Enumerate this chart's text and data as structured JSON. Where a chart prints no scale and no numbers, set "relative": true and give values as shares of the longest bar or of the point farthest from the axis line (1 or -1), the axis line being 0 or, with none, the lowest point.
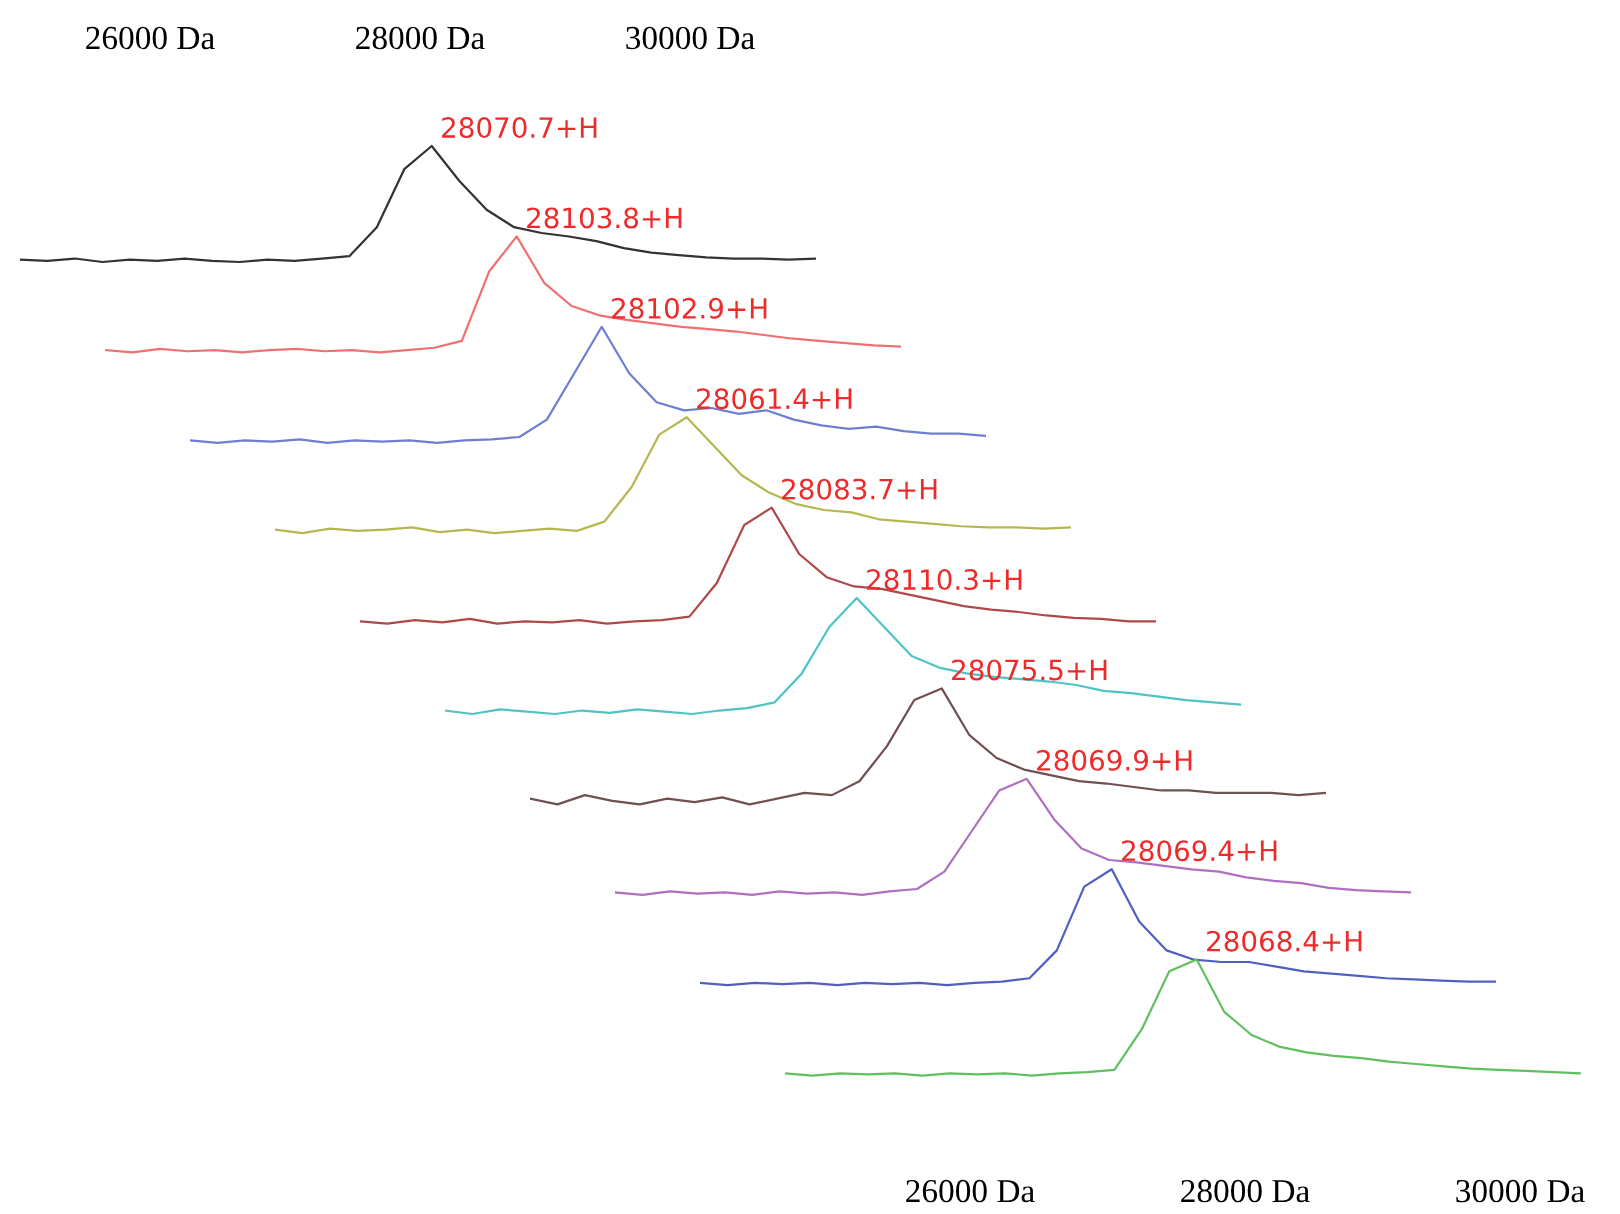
{
  "chart_data": [
    {
      "type": "line",
      "relative": true,
      "categories": [
        null,
        null,
        null,
        null,
        null,
        null,
        null,
        null,
        null,
        null,
        null,
        null,
        null,
        null,
        null,
        null,
        null,
        null,
        null,
        null,
        null,
        null,
        null,
        null,
        null,
        null,
        null,
        null,
        null,
        null
      ],
      "x2lim": [
        26000,
        30000
      ],
      "x2ticks": [
        {
          "value": 26000,
          "label": "26000 Da"
        },
        {
          "value": 28000,
          "label": "28000 Da"
        },
        {
          "value": 30000,
          "label": "30000 Da"
        }
      ],
      "tick_labels": "x2",
      "series": [
        {
          "color": "#333333",
          "values": [
            0.02,
            0.01,
            0.03,
            0.0,
            0.02,
            0.01,
            0.03,
            0.01,
            0.0,
            0.02,
            0.01,
            0.03,
            0.05,
            0.3,
            0.8,
            1.0,
            0.7,
            0.45,
            0.3,
            0.25,
            0.22,
            0.18,
            0.12,
            0.08,
            0.06,
            0.04,
            0.03,
            0.03,
            0.02,
            0.03
          ]
        }
      ],
      "annotations": [
        "28070.7+H"
      ]
    },
    {
      "type": "line",
      "relative": true,
      "categories": [
        null,
        null,
        null,
        null,
        null,
        null,
        null,
        null,
        null,
        null,
        null,
        null,
        null,
        null,
        null,
        null,
        null,
        null,
        null,
        null,
        null,
        null,
        null,
        null,
        null,
        null,
        null,
        null,
        null,
        null
      ],
      "tick_labels": false,
      "series": [
        {
          "color": "#f07070",
          "values": [
            0.02,
            0.0,
            0.03,
            0.01,
            0.02,
            0.0,
            0.02,
            0.03,
            0.01,
            0.02,
            0.0,
            0.02,
            0.04,
            0.1,
            0.7,
            1.0,
            0.6,
            0.4,
            0.32,
            0.28,
            0.25,
            0.22,
            0.2,
            0.18,
            0.15,
            0.12,
            0.1,
            0.08,
            0.06,
            0.05
          ]
        }
      ],
      "annotations": [
        "28103.8+H"
      ]
    },
    {
      "type": "line",
      "relative": true,
      "categories": [
        null,
        null,
        null,
        null,
        null,
        null,
        null,
        null,
        null,
        null,
        null,
        null,
        null,
        null,
        null,
        null,
        null,
        null,
        null,
        null,
        null,
        null,
        null,
        null,
        null,
        null,
        null,
        null,
        null,
        null
      ],
      "tick_labels": false,
      "series": [
        {
          "color": "#6f7fcf",
          "values": [
            0.02,
            0.0,
            0.02,
            0.01,
            0.03,
            0.0,
            0.02,
            0.01,
            0.02,
            0.0,
            0.02,
            0.03,
            0.05,
            0.2,
            0.6,
            1.0,
            0.6,
            0.35,
            0.28,
            0.3,
            0.25,
            0.28,
            0.2,
            0.15,
            0.12,
            0.14,
            0.1,
            0.08,
            0.08,
            0.06
          ]
        }
      ],
      "annotations": [
        "28102.9+H"
      ]
    },
    {
      "type": "line",
      "relative": true,
      "categories": [
        null,
        null,
        null,
        null,
        null,
        null,
        null,
        null,
        null,
        null,
        null,
        null,
        null,
        null,
        null,
        null,
        null,
        null,
        null,
        null,
        null,
        null,
        null,
        null,
        null,
        null,
        null,
        null,
        null,
        null
      ],
      "tick_labels": false,
      "series": [
        {
          "color": "#b5b850",
          "values": [
            0.03,
            0.0,
            0.04,
            0.02,
            0.03,
            0.05,
            0.01,
            0.03,
            0.0,
            0.02,
            0.04,
            0.02,
            0.1,
            0.4,
            0.85,
            1.0,
            0.75,
            0.5,
            0.35,
            0.25,
            0.2,
            0.18,
            0.12,
            0.1,
            0.08,
            0.06,
            0.05,
            0.05,
            0.04,
            0.05
          ]
        }
      ],
      "annotations": [
        "28061.4+H"
      ]
    },
    {
      "type": "line",
      "relative": true,
      "categories": [
        null,
        null,
        null,
        null,
        null,
        null,
        null,
        null,
        null,
        null,
        null,
        null,
        null,
        null,
        null,
        null,
        null,
        null,
        null,
        null,
        null,
        null,
        null,
        null,
        null,
        null,
        null,
        null,
        null,
        null
      ],
      "tick_labels": false,
      "series": [
        {
          "color": "#b04848",
          "values": [
            0.02,
            0.0,
            0.03,
            0.01,
            0.04,
            0.0,
            0.02,
            0.01,
            0.03,
            0.0,
            0.02,
            0.03,
            0.06,
            0.35,
            0.85,
            1.0,
            0.6,
            0.4,
            0.32,
            0.3,
            0.25,
            0.2,
            0.15,
            0.12,
            0.1,
            0.07,
            0.05,
            0.04,
            0.02,
            0.02
          ]
        }
      ],
      "annotations": [
        "28083.7+H"
      ]
    },
    {
      "type": "line",
      "relative": true,
      "categories": [
        null,
        null,
        null,
        null,
        null,
        null,
        null,
        null,
        null,
        null,
        null,
        null,
        null,
        null,
        null,
        null,
        null,
        null,
        null,
        null,
        null,
        null,
        null,
        null,
        null,
        null,
        null,
        null,
        null,
        null
      ],
      "tick_labels": false,
      "series": [
        {
          "color": "#4fc4c4",
          "values": [
            0.03,
            0.0,
            0.04,
            0.02,
            0.0,
            0.03,
            0.01,
            0.04,
            0.02,
            0.0,
            0.03,
            0.05,
            0.1,
            0.35,
            0.75,
            1.0,
            0.75,
            0.5,
            0.4,
            0.35,
            0.32,
            0.3,
            0.28,
            0.25,
            0.2,
            0.18,
            0.15,
            0.12,
            0.1,
            0.08
          ]
        }
      ],
      "annotations": [
        "28110.3+H"
      ]
    },
    {
      "type": "line",
      "relative": true,
      "categories": [
        null,
        null,
        null,
        null,
        null,
        null,
        null,
        null,
        null,
        null,
        null,
        null,
        null,
        null,
        null,
        null,
        null,
        null,
        null,
        null,
        null,
        null,
        null,
        null,
        null,
        null,
        null,
        null,
        null,
        null
      ],
      "tick_labels": false,
      "series": [
        {
          "color": "#705050",
          "values": [
            0.05,
            0.0,
            0.08,
            0.03,
            0.0,
            0.05,
            0.02,
            0.06,
            0.0,
            0.05,
            0.1,
            0.08,
            0.2,
            0.5,
            0.9,
            1.0,
            0.6,
            0.4,
            0.3,
            0.25,
            0.2,
            0.18,
            0.15,
            0.12,
            0.12,
            0.1,
            0.1,
            0.1,
            0.08,
            0.1
          ]
        }
      ],
      "annotations": [
        "28075.5+H"
      ]
    },
    {
      "type": "line",
      "relative": true,
      "categories": [
        null,
        null,
        null,
        null,
        null,
        null,
        null,
        null,
        null,
        null,
        null,
        null,
        null,
        null,
        null,
        null,
        null,
        null,
        null,
        null,
        null,
        null,
        null,
        null,
        null,
        null,
        null,
        null,
        null,
        null
      ],
      "tick_labels": false,
      "series": [
        {
          "color": "#b070c0",
          "values": [
            0.02,
            0.0,
            0.03,
            0.01,
            0.02,
            0.0,
            0.03,
            0.01,
            0.02,
            0.0,
            0.03,
            0.05,
            0.2,
            0.55,
            0.9,
            1.0,
            0.65,
            0.4,
            0.3,
            0.28,
            0.25,
            0.22,
            0.2,
            0.15,
            0.12,
            0.1,
            0.06,
            0.04,
            0.03,
            0.02
          ]
        }
      ],
      "annotations": [
        "28069.9+H"
      ]
    },
    {
      "type": "line",
      "relative": true,
      "categories": [
        null,
        null,
        null,
        null,
        null,
        null,
        null,
        null,
        null,
        null,
        null,
        null,
        null,
        null,
        null,
        null,
        null,
        null,
        null,
        null,
        null,
        null,
        null,
        null,
        null,
        null,
        null,
        null,
        null,
        null
      ],
      "tick_labels": false,
      "series": [
        {
          "color": "#5060c0",
          "values": [
            0.02,
            0.0,
            0.02,
            0.01,
            0.02,
            0.0,
            0.02,
            0.01,
            0.02,
            0.0,
            0.02,
            0.03,
            0.06,
            0.3,
            0.85,
            1.0,
            0.55,
            0.3,
            0.22,
            0.2,
            0.2,
            0.16,
            0.12,
            0.1,
            0.08,
            0.06,
            0.05,
            0.04,
            0.03,
            0.03
          ]
        }
      ],
      "annotations": [
        "28069.4+H"
      ]
    },
    {
      "type": "line",
      "relative": true,
      "categories": [
        null,
        null,
        null,
        null,
        null,
        null,
        null,
        null,
        null,
        null,
        null,
        null,
        null,
        null,
        null,
        null,
        null,
        null,
        null,
        null,
        null,
        null,
        null,
        null,
        null,
        null,
        null,
        null,
        null,
        null
      ],
      "tick_labels": false,
      "series": [
        {
          "color": "#60c060",
          "values": [
            0.02,
            0.0,
            0.02,
            0.01,
            0.02,
            0.0,
            0.02,
            0.01,
            0.02,
            0.0,
            0.02,
            0.03,
            0.05,
            0.4,
            0.9,
            1.0,
            0.55,
            0.35,
            0.25,
            0.2,
            0.17,
            0.15,
            0.12,
            0.1,
            0.08,
            0.06,
            0.05,
            0.04,
            0.03,
            0.02
          ]
        }
      ],
      "annotations": [
        "28068.4+H"
      ]
    },
    {
      "type": "other",
      "annotations": [
        "26000 Da",
        "28000 Da",
        "30000 Da"
      ]
    }
  ]
}
